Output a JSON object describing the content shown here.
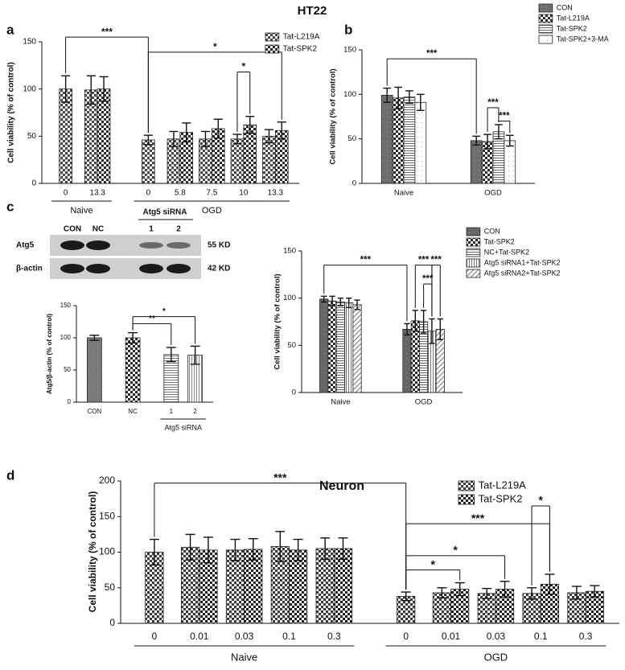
{
  "title": "HT22",
  "panel_labels": [
    "a",
    "b",
    "c",
    "d"
  ],
  "blot": {
    "columns": [
      "CON",
      "NC"
    ],
    "group": "Atg5 siRNA",
    "group_columns": [
      "1",
      "2"
    ],
    "rows": [
      "Atg5",
      "β-actin"
    ],
    "sizes": [
      "55 KD",
      "42 KD"
    ]
  },
  "chart_data": [
    {
      "type": "bar",
      "y_label": "Cell viability (% of control)",
      "categories": [
        "0",
        "13.3",
        "0",
        "5.8",
        "7.5",
        "10",
        "13.3"
      ],
      "group_labels": [
        "Naive",
        "OGD"
      ],
      "series": [
        {
          "name": "Tat-L219A",
          "color": "#4a4a4a",
          "values": [
            100,
            99,
            46,
            47,
            47,
            47,
            50
          ],
          "errors": [
            14,
            15,
            5,
            8,
            8,
            5,
            7
          ]
        },
        {
          "name": "Tat-SPK2",
          "color": "#2a2a2a",
          "values": [
            null,
            100,
            null,
            54,
            58,
            62,
            56
          ],
          "errors": [
            null,
            13,
            null,
            10,
            10,
            9,
            9
          ]
        }
      ],
      "ylim": [
        0,
        150
      ],
      "yticks": [
        0,
        50,
        100,
        150
      ],
      "annotations": [
        "***",
        "*",
        "*"
      ]
    },
    {
      "type": "bar",
      "y_label": "Cell viability (% of control)",
      "categories": [
        "Naive",
        "OGD"
      ],
      "series": [
        {
          "name": "CON",
          "color": "#6e6e6e",
          "values": [
            99,
            48
          ],
          "errors": [
            8,
            5
          ]
        },
        {
          "name": "Tat-L219A",
          "color": "#2a2a2a",
          "values": [
            96,
            47
          ],
          "errors": [
            12,
            8
          ]
        },
        {
          "name": "Tat-SPK2",
          "color": "#666666",
          "values": [
            97,
            58
          ],
          "errors": [
            7,
            8
          ]
        },
        {
          "name": "Tat-SPK2+3-MA",
          "color": "#aaaaaa",
          "values": [
            91,
            48
          ],
          "errors": [
            9,
            6
          ]
        }
      ],
      "ylim": [
        0,
        150
      ],
      "yticks": [
        0,
        50,
        100,
        150
      ],
      "annotations": [
        "***",
        "***",
        "***"
      ]
    },
    {
      "type": "bar",
      "y_label": "Atg5/β-actin (% of control)",
      "categories": [
        "CON",
        "NC",
        "1",
        "2"
      ],
      "group_labels": [
        "Atg5 siRNA"
      ],
      "values": [
        100,
        100,
        74,
        73
      ],
      "errors": [
        4,
        8,
        11,
        14
      ],
      "colors": [
        "#7a7a7a",
        "#2a2a2a",
        "#777777",
        "#888888"
      ],
      "ylim": [
        0,
        150
      ],
      "yticks": [
        0,
        50,
        100,
        150
      ],
      "annotations": [
        "**",
        "*"
      ]
    },
    {
      "type": "bar",
      "y_label": "Cell viability (% of control)",
      "categories": [
        "Naive",
        "OGD"
      ],
      "series": [
        {
          "name": "CON",
          "color": "#666666",
          "values": [
            99,
            67
          ],
          "errors": [
            3,
            6
          ]
        },
        {
          "name": "Tat-SPK2",
          "color": "#2a2a2a",
          "values": [
            97,
            76
          ],
          "errors": [
            5,
            11
          ]
        },
        {
          "name": "NC+Tat-SPK2",
          "color": "#666666",
          "values": [
            96,
            75
          ],
          "errors": [
            4,
            12
          ]
        },
        {
          "name": "Atg5 siRNA1+Tat-SPK2",
          "color": "#777777",
          "values": [
            95,
            65
          ],
          "errors": [
            5,
            13
          ]
        },
        {
          "name": "Atg5 siRNA2+Tat-SPK2",
          "color": "#777777",
          "values": [
            93,
            67
          ],
          "errors": [
            5,
            11
          ]
        }
      ],
      "ylim": [
        0,
        150
      ],
      "yticks": [
        0,
        50,
        100,
        150
      ],
      "annotations": [
        "***",
        "***",
        "***",
        "***"
      ]
    },
    {
      "type": "bar",
      "title": "Neuron",
      "y_label": "Cell viability (% of control)",
      "categories": [
        "0",
        "0.01",
        "0.03",
        "0.1",
        "0.3",
        "0",
        "0.01",
        "0.03",
        "0.1",
        "0.3"
      ],
      "group_labels": [
        "Naive",
        "OGD"
      ],
      "series": [
        {
          "name": "Tat-L219A",
          "color": "#3a3a3a",
          "values": [
            100,
            107,
            103,
            108,
            105,
            38,
            43,
            42,
            42,
            43
          ],
          "errors": [
            18,
            18,
            15,
            21,
            15,
            6,
            7,
            7,
            8,
            9
          ]
        },
        {
          "name": "Tat-SPK2",
          "color": "#1e1e1e",
          "values": [
            null,
            103,
            104,
            103,
            105,
            null,
            48,
            48,
            55,
            45
          ],
          "errors": [
            null,
            18,
            15,
            15,
            15,
            null,
            9,
            11,
            14,
            8
          ]
        }
      ],
      "ylim": [
        0,
        200
      ],
      "yticks": [
        0,
        50,
        100,
        150,
        200
      ],
      "annotations": [
        "***",
        "*",
        "***",
        "*",
        "*"
      ]
    }
  ]
}
